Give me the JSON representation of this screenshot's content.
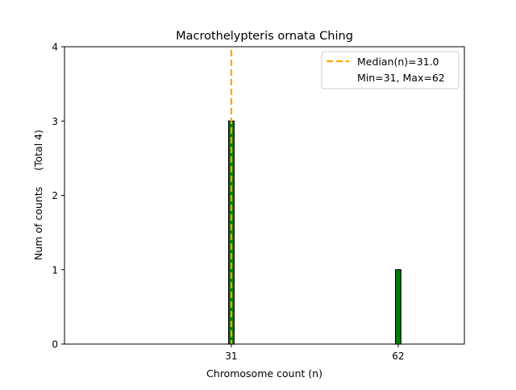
{
  "chart_data": {
    "type": "bar",
    "title": "Macrothelypteris ornata Ching",
    "xlabel": "Chromosome count (n)",
    "ylabel": "Num of counts     (Total 4)",
    "xlim": [
      0,
      74.3
    ],
    "ylim": [
      0,
      4
    ],
    "xticks": [
      31,
      62
    ],
    "yticks": [
      0,
      1,
      2,
      3,
      4
    ],
    "bars": [
      {
        "x": 31,
        "value": 3
      },
      {
        "x": 62,
        "value": 1
      }
    ],
    "bar_width": 1,
    "bar_color": "#008000",
    "median": 31.0,
    "median_color": "#FFA500",
    "legend": {
      "placement": "top-right",
      "entries": [
        "Median(n)=31.0",
        "Min=31, Max=62"
      ]
    },
    "grid": false
  }
}
